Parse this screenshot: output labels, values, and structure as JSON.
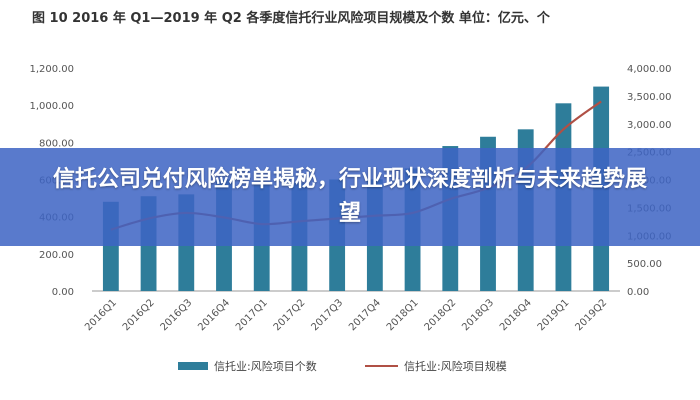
{
  "chart_data": {
    "type": "bar",
    "title": "图 10 2016 年 Q1—2019 年 Q2 各季度信托行业风险项目规模及个数  单位：亿元、个",
    "categories": [
      "2016Q1",
      "2016Q2",
      "2016Q3",
      "2016Q4",
      "2017Q1",
      "2017Q2",
      "2017Q3",
      "2017Q4",
      "2018Q1",
      "2018Q2",
      "2018Q3",
      "2018Q4",
      "2019Q1",
      "2019Q2"
    ],
    "series": [
      {
        "name": "信托业:风险项目个数",
        "type": "bar",
        "axis": "left",
        "values": [
          480,
          510,
          520,
          600,
          570,
          580,
          600,
          601,
          660,
          780,
          830,
          870,
          1010,
          1100
        ]
      },
      {
        "name": "信托业:风险项目规模",
        "type": "line",
        "axis": "right",
        "values": [
          1100,
          1300,
          1400,
          1320,
          1200,
          1250,
          1300,
          1350,
          1400,
          1650,
          1850,
          2200,
          2900,
          3400
        ]
      }
    ],
    "ylim_left": [
      0,
      1200
    ],
    "yticks_left": [
      "0.00",
      "200.00",
      "400.00",
      "600.00",
      "800.00",
      "1,000.00",
      "1,200.00"
    ],
    "ylim_right": [
      0,
      4000
    ],
    "yticks_right": [
      "0.00",
      "500.00",
      "1,000.00",
      "1,500.00",
      "2,000.00",
      "2,500.00",
      "3,000.00",
      "3,500.00",
      "4,000.00"
    ],
    "grid": false,
    "legend_position": "bottom",
    "colors": {
      "bar": "#2e7d9a",
      "line": "#b05045"
    }
  },
  "banner": {
    "text": "信托公司兑付风险榜单揭秘，行业现状深度剖析与未来趋势展望"
  }
}
